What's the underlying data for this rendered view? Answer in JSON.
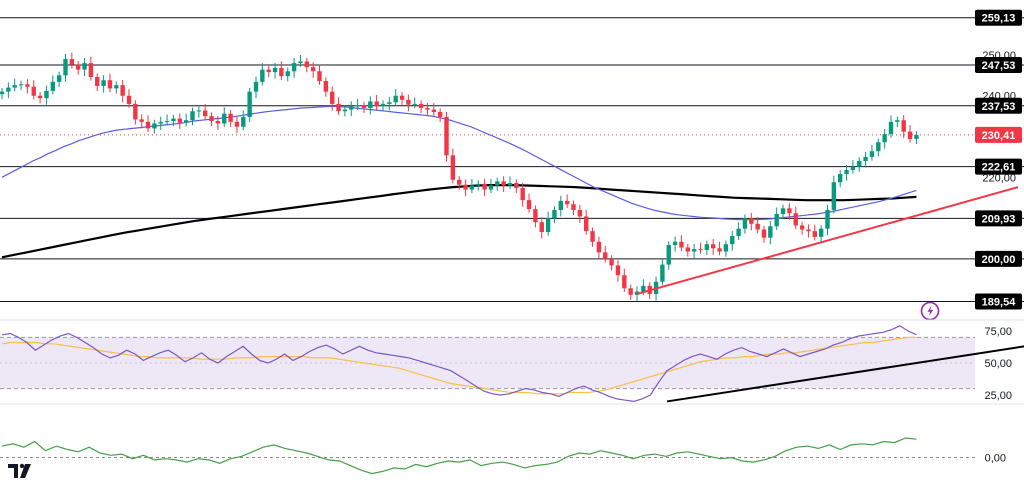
{
  "chart_data": [
    {
      "type": "candlestick",
      "ylim": [
        186,
        262
      ],
      "price_axis_labels": [
        "250,00",
        "240,00",
        "220,00"
      ],
      "price_axis_values": [
        250,
        240,
        220
      ],
      "horizontal_levels": [
        {
          "label": "259,13",
          "value": 259.13
        },
        {
          "label": "247,53",
          "value": 247.53
        },
        {
          "label": "237,53",
          "value": 237.53
        },
        {
          "label": "222,61",
          "value": 222.61
        },
        {
          "label": "209,93",
          "value": 209.93
        },
        {
          "label": "200,00",
          "value": 200.0
        },
        {
          "label": "189,54",
          "value": 189.54
        }
      ],
      "last_price": {
        "label": "230,41",
        "value": 230.41,
        "color": "#f23645"
      },
      "colors": {
        "up": "#089981",
        "down": "#f23645",
        "ma_short": "#5b5ce2",
        "ma_long": "#000000",
        "trendline": "#f23645"
      },
      "closes": [
        241.0,
        242.0,
        242.6,
        242.8,
        242.2,
        240.0,
        239.4,
        241.2,
        243.4,
        245.0,
        249.0,
        247.6,
        246.4,
        248.0,
        244.6,
        242.4,
        243.8,
        241.8,
        242.6,
        240.0,
        238.0,
        234.2,
        233.6,
        232.0,
        233.2,
        233.6,
        233.8,
        234.4,
        233.4,
        234.0,
        236.2,
        236.4,
        235.0,
        233.8,
        233.2,
        235.6,
        233.6,
        232.4,
        234.8,
        241.0,
        243.4,
        246.4,
        245.8,
        246.8,
        244.8,
        246.0,
        248.0,
        248.4,
        247.0,
        246.0,
        243.6,
        241.0,
        238.0,
        236.2,
        236.6,
        237.4,
        237.6,
        237.0,
        238.6,
        237.4,
        238.0,
        238.4,
        240.0,
        239.0,
        237.8,
        238.0,
        237.0,
        236.6,
        236.0,
        234.8,
        225.4,
        219.4,
        218.2,
        217.0,
        218.0,
        218.4,
        217.0,
        218.0,
        219.0,
        218.0,
        218.6,
        217.4,
        214.4,
        212.2,
        209.0,
        206.6,
        210.0,
        212.0,
        214.2,
        213.4,
        212.0,
        210.4,
        206.8,
        204.2,
        201.6,
        200.0,
        198.4,
        196.0,
        192.8,
        191.2,
        192.0,
        193.4,
        191.4,
        194.4,
        198.6,
        203.4,
        204.2,
        202.8,
        201.8,
        202.4,
        202.2,
        203.6,
        202.6,
        201.8,
        203.6,
        205.6,
        207.4,
        210.0,
        208.6,
        207.2,
        205.2,
        208.0,
        211.0,
        212.4,
        211.2,
        208.2,
        207.2,
        206.8,
        205.4,
        207.4,
        212.0,
        218.8,
        220.8,
        221.8,
        222.6,
        224.0,
        225.0,
        226.4,
        228.6,
        230.6,
        233.6,
        234.0,
        231.2,
        229.4,
        230.41
      ],
      "sma_short": [
        220.0,
        221.0,
        222.0,
        223.0,
        224.0,
        224.8,
        225.8,
        226.6,
        227.5,
        228.2,
        229.0,
        229.6,
        230.2,
        230.8,
        231.2,
        231.6,
        231.8,
        232.0,
        232.2,
        232.4,
        232.6,
        232.8,
        233.0,
        233.2,
        233.5,
        233.8,
        234.0,
        234.2,
        234.4,
        234.6,
        234.8,
        235.1,
        235.4,
        235.7,
        236.0,
        236.2,
        236.4,
        236.6,
        236.8,
        237.0,
        237.1,
        237.2,
        237.3,
        237.4,
        237.3,
        237.2,
        237.0,
        236.8,
        236.6,
        236.4,
        236.2,
        236.0,
        235.8,
        235.6,
        235.4,
        235.2,
        235.0,
        234.6,
        234.2,
        233.6,
        233.0,
        232.4,
        231.6,
        230.8,
        230.0,
        229.2,
        228.4,
        227.5,
        226.6,
        225.6,
        224.6,
        223.6,
        222.6,
        221.6,
        220.6,
        219.6,
        218.6,
        217.6,
        216.8,
        216.0,
        215.2,
        214.4,
        213.6,
        213.0,
        212.4,
        211.9,
        211.5,
        211.1,
        210.8,
        210.6,
        210.4,
        210.2,
        210.1,
        210.0,
        209.8,
        209.7,
        209.6,
        209.6,
        209.6,
        209.7,
        209.8,
        210.0,
        210.2,
        210.4,
        210.6,
        210.8,
        211.0,
        211.3,
        211.6,
        212.0,
        212.4,
        212.8,
        213.2,
        213.6,
        214.0,
        214.5,
        215.0,
        215.6,
        216.2,
        216.8
      ],
      "sma_short_note": "",
      "sma_long": [
        200.4,
        201.0,
        201.6,
        202.2,
        202.8,
        203.4,
        204.0,
        204.6,
        205.2,
        205.8,
        206.4,
        206.9,
        207.4,
        207.9,
        208.4,
        208.9,
        209.4,
        209.8,
        210.2,
        210.6,
        211.0,
        211.4,
        211.8,
        212.2,
        212.6,
        213.0,
        213.4,
        213.8,
        214.2,
        214.6,
        215.0,
        215.4,
        215.8,
        216.2,
        216.6,
        217.0,
        217.3,
        217.6,
        217.8,
        218.0,
        218.1,
        218.1,
        218.1,
        218.0,
        217.9,
        217.8,
        217.7,
        217.6,
        217.4,
        217.2,
        217.0,
        216.8,
        216.6,
        216.4,
        216.2,
        216.0,
        215.8,
        215.6,
        215.4,
        215.2,
        215.0,
        214.9,
        214.8,
        214.7,
        214.6,
        214.5,
        214.4,
        214.4,
        214.4,
        214.4,
        214.5,
        214.6,
        214.7,
        214.8,
        215.0,
        215.2
      ],
      "sma_long_note": "",
      "trendline": {
        "from": {
          "index": 100,
          "value": 191.4
        },
        "to": {
          "index": 160,
          "value": 217.6
        }
      }
    },
    {
      "type": "line",
      "ylim": [
        18,
        82
      ],
      "axis_labels": [
        "75,00",
        "50,00",
        "25,00"
      ],
      "axis_values": [
        75,
        50,
        25
      ],
      "band": [
        30,
        70
      ],
      "colors": {
        "rsi": "#7e57c2",
        "signal": "#f7c04a",
        "band": "#ede7f6",
        "trendline": "#000000"
      },
      "rsi": [
        72,
        73,
        70,
        66,
        60,
        64,
        68,
        71,
        73,
        70,
        66,
        62,
        57,
        54,
        56,
        60,
        57,
        52,
        55,
        58,
        60,
        56,
        51,
        54,
        58,
        53,
        50,
        55,
        59,
        63,
        57,
        52,
        50,
        53,
        57,
        52,
        55,
        59,
        62,
        64,
        61,
        57,
        60,
        63,
        60,
        58,
        57,
        56,
        55,
        54,
        52,
        50,
        48,
        46,
        44,
        40,
        36,
        32,
        28,
        26,
        25,
        26,
        28,
        30,
        29,
        27,
        26,
        24,
        27,
        30,
        32,
        29,
        27,
        24,
        22,
        21,
        20,
        22,
        25,
        35,
        44,
        48,
        52,
        55,
        57,
        55,
        53,
        57,
        60,
        62,
        59,
        57,
        55,
        58,
        61,
        58,
        55,
        57,
        59,
        61,
        64,
        66,
        69,
        71,
        72,
        73,
        74,
        76,
        79,
        75,
        72
      ],
      "signal": [
        65,
        66,
        66,
        66,
        66,
        65,
        65,
        64,
        63,
        62,
        61,
        60,
        59,
        58,
        57,
        56,
        55,
        55,
        54,
        54,
        54,
        54,
        54,
        53,
        53,
        53,
        53,
        54,
        54,
        54,
        55,
        55,
        55,
        55,
        55,
        55,
        54,
        54,
        54,
        53,
        52,
        51,
        50,
        49,
        48,
        47,
        46,
        44,
        42,
        40,
        38,
        36,
        34,
        33,
        32,
        31,
        30,
        29,
        28,
        27,
        27,
        27,
        26,
        26,
        26,
        26,
        27,
        27,
        27,
        28,
        29,
        31,
        33,
        35,
        37,
        39,
        41,
        43,
        45,
        47,
        49,
        51,
        52,
        53,
        54,
        54,
        55,
        55,
        56,
        57,
        57,
        58,
        58,
        59,
        60,
        61,
        62,
        63,
        64,
        65,
        66,
        66,
        67,
        68,
        69,
        70,
        70
      ],
      "trendline": {
        "from": {
          "index": 80,
          "value": 20
        },
        "to": {
          "index": 128,
          "value": 68
        }
      }
    },
    {
      "type": "line",
      "ylim": [
        -1.5,
        1.2
      ],
      "axis_labels": [
        "0,00"
      ],
      "axis_values": [
        0
      ],
      "colors": {
        "line": "#43a047",
        "zero": "#888888"
      },
      "values": [
        0.5,
        0.6,
        0.45,
        0.7,
        0.3,
        0.5,
        0.35,
        0.25,
        0.45,
        0.2,
        0.1,
        0.15,
        -0.05,
        0.1,
        -0.1,
        -0.05,
        -0.1,
        -0.2,
        -0.05,
        -0.1,
        -0.25,
        -0.05,
        0.05,
        0.25,
        0.45,
        0.55,
        0.4,
        0.3,
        0.2,
        0.05,
        -0.1,
        -0.15,
        -0.35,
        -0.55,
        -0.7,
        -0.6,
        -0.45,
        -0.5,
        -0.3,
        -0.4,
        -0.25,
        -0.15,
        -0.2,
        -0.1,
        -0.35,
        -0.25,
        -0.2,
        -0.3,
        -0.45,
        -0.35,
        -0.3,
        -0.2,
        0.05,
        0.2,
        0.15,
        0.3,
        0.2,
        0.1,
        -0.05,
        0.1,
        0.15,
        0.05,
        0.2,
        0.25,
        0.15,
        0.05,
        -0.05,
        0.0,
        -0.15,
        -0.2,
        -0.1,
        0.05,
        0.3,
        0.45,
        0.5,
        0.4,
        0.55,
        0.35,
        0.55,
        0.6,
        0.55,
        0.7,
        0.65,
        0.85,
        0.8
      ]
    }
  ],
  "ui": {
    "logo": "TV",
    "timer_icon": "lightning-icon"
  }
}
